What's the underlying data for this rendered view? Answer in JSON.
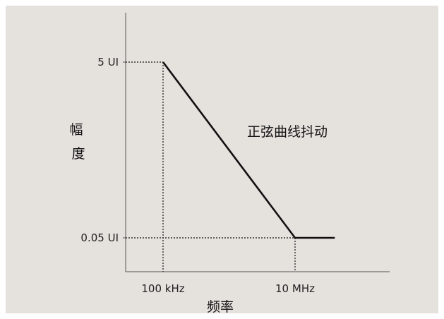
{
  "chart_data": {
    "type": "line",
    "title": "",
    "xlabel": "频率",
    "ylabel": "幅度",
    "x_scale": "log",
    "y_scale": "log",
    "x_ticks": [
      "100 kHz",
      "10 MHz"
    ],
    "y_ticks": [
      "5 UI",
      "0.05 UI"
    ],
    "series": [
      {
        "name": "",
        "x": [
          "100 kHz",
          "10 MHz",
          "40 MHz"
        ],
        "y": [
          "5 UI",
          "0.05 UI",
          "0.05 UI"
        ]
      }
    ],
    "annotations": [
      {
        "text": "正弦曲线抖动"
      }
    ],
    "reference_lines": "dotted guides from axes to 100 kHz / 5 UI and 10 MHz / 0.05 UI",
    "grid": false,
    "legend": "none",
    "colors": {
      "background": "#e5e1dd",
      "line": "#111111",
      "axis": "#555555"
    }
  }
}
